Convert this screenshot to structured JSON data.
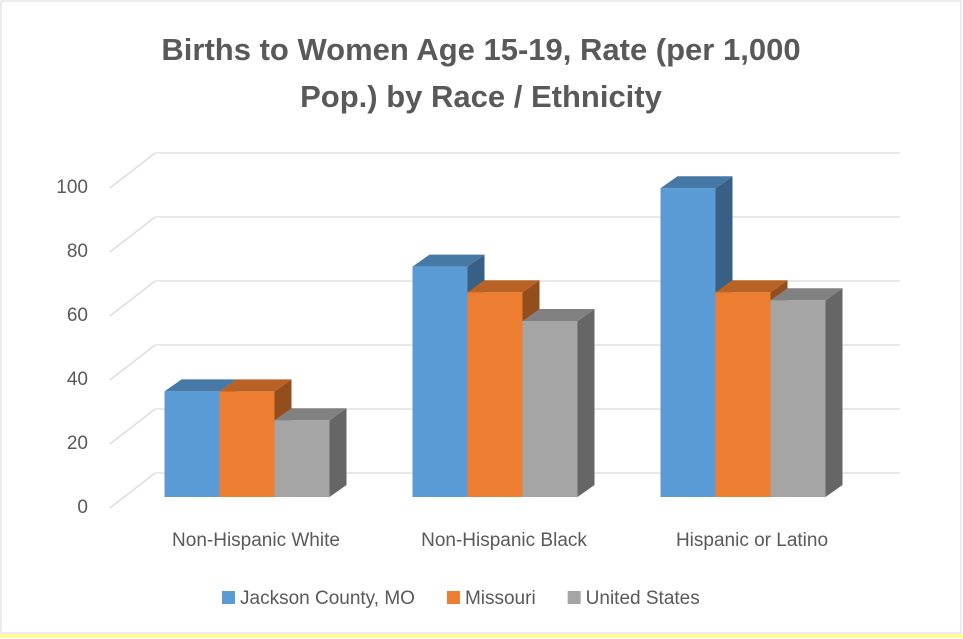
{
  "chart_data": {
    "type": "bar3d",
    "title": "Births to Women Age 15-19, Rate (per 1,000 Pop.) by Race / Ethnicity",
    "categories": [
      "Non-Hispanic White",
      "Non-Hispanic Black",
      "Hispanic or Latino"
    ],
    "series": [
      {
        "name": "Jackson County, MO",
        "color": "#5b9bd5",
        "values": [
          33,
          72,
          96.5
        ]
      },
      {
        "name": "Missouri",
        "color": "#ed7d31",
        "values": [
          33,
          64,
          64
        ]
      },
      {
        "name": "United States",
        "color": "#a5a5a5",
        "values": [
          24,
          55,
          61.5
        ]
      }
    ],
    "ylim": [
      0,
      100
    ],
    "yticks": [
      0,
      20,
      40,
      60,
      80,
      100
    ],
    "grid": true,
    "legend": "bottom"
  }
}
